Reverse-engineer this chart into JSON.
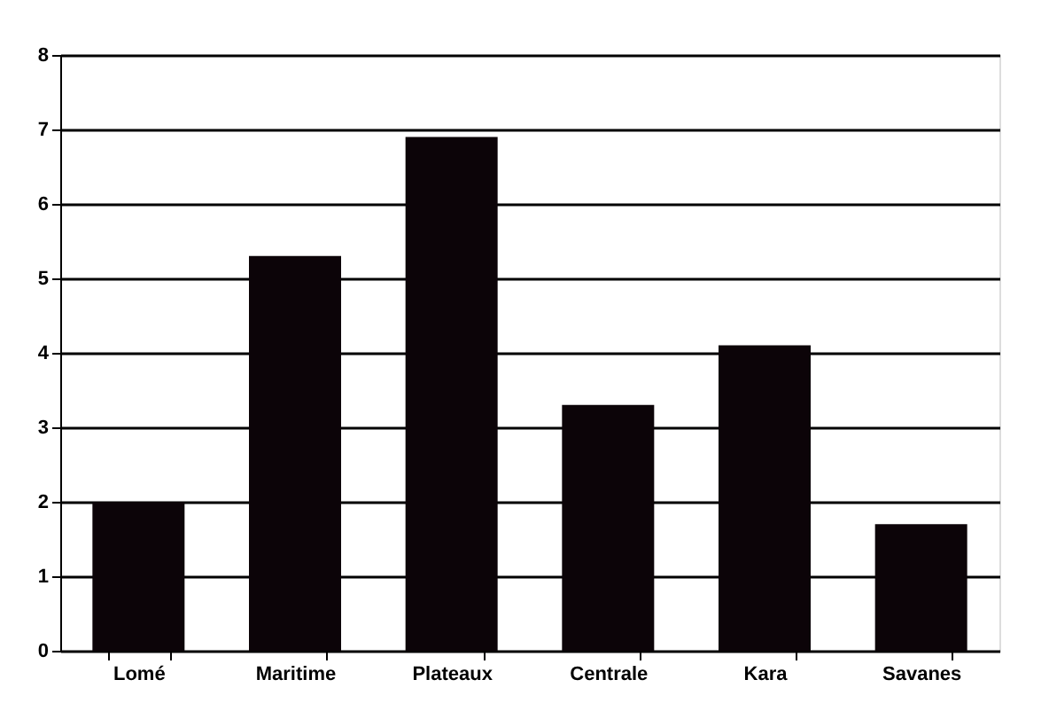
{
  "chart_data": {
    "type": "bar",
    "categories": [
      "Lomé",
      "Maritime",
      "Plateaux",
      "Centrale",
      "Kara",
      "Savanes"
    ],
    "values": [
      2.0,
      5.3,
      6.9,
      3.3,
      4.1,
      1.7
    ],
    "color": "#0c0408",
    "ylim": [
      0,
      8
    ],
    "yticks": [
      0,
      1,
      2,
      3,
      4,
      5,
      6,
      7,
      8
    ],
    "grid": "y"
  }
}
